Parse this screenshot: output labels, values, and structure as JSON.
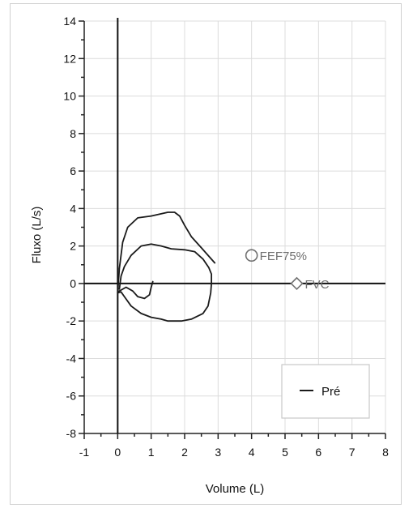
{
  "chart_data": {
    "type": "line",
    "title": "",
    "xlabel": "Volume (L)",
    "ylabel": "Fluxo (L/s)",
    "xlim": [
      -1,
      8
    ],
    "ylim": [
      -8,
      14
    ],
    "x_ticks": [
      "-1",
      "0",
      "1",
      "2",
      "3",
      "4",
      "5",
      "6",
      "7",
      "8"
    ],
    "y_ticks": [
      "-8",
      "-6",
      "-4",
      "-2",
      "0",
      "2",
      "4",
      "6",
      "8",
      "10",
      "12",
      "14"
    ],
    "grid": true,
    "legend_position": "bottom-right",
    "series": [
      {
        "name": "Pré",
        "color": "#1a1a1a",
        "loops": [
          {
            "points": [
              [
                0.0,
                -0.5
              ],
              [
                0.05,
                0.8
              ],
              [
                0.15,
                2.2
              ],
              [
                0.3,
                3.0
              ],
              [
                0.6,
                3.5
              ],
              [
                1.0,
                3.6
              ],
              [
                1.5,
                3.8
              ],
              [
                1.7,
                3.8
              ],
              [
                1.85,
                3.6
              ],
              [
                2.0,
                3.1
              ],
              [
                2.2,
                2.5
              ],
              [
                2.5,
                1.9
              ],
              [
                2.75,
                1.4
              ],
              [
                2.9,
                1.1
              ]
            ]
          },
          {
            "points": [
              [
                0.05,
                -0.3
              ],
              [
                0.1,
                0.4
              ],
              [
                0.2,
                0.9
              ],
              [
                0.4,
                1.5
              ],
              [
                0.7,
                2.0
              ],
              [
                1.0,
                2.1
              ],
              [
                1.3,
                2.0
              ],
              [
                1.6,
                1.85
              ],
              [
                2.0,
                1.8
              ],
              [
                2.3,
                1.7
              ],
              [
                2.55,
                1.3
              ],
              [
                2.72,
                0.85
              ],
              [
                2.8,
                0.5
              ],
              [
                2.8,
                0.0
              ],
              [
                2.78,
                -0.5
              ],
              [
                2.7,
                -1.2
              ],
              [
                2.55,
                -1.6
              ],
              [
                2.2,
                -1.9
              ],
              [
                1.9,
                -2.0
              ],
              [
                1.5,
                -2.0
              ],
              [
                1.3,
                -1.9
              ],
              [
                1.0,
                -1.8
              ],
              [
                0.7,
                -1.6
              ],
              [
                0.4,
                -1.2
              ],
              [
                0.2,
                -0.7
              ],
              [
                0.1,
                -0.45
              ],
              [
                0.0,
                -0.5
              ]
            ]
          },
          {
            "points": [
              [
                0.0,
                -0.45
              ],
              [
                0.1,
                -0.35
              ],
              [
                0.25,
                -0.2
              ],
              [
                0.45,
                -0.4
              ],
              [
                0.6,
                -0.7
              ],
              [
                0.8,
                -0.8
              ],
              [
                0.95,
                -0.6
              ],
              [
                1.0,
                -0.2
              ],
              [
                1.05,
                0.1
              ]
            ]
          }
        ]
      }
    ],
    "markers": [
      {
        "label": "FEF75%",
        "shape": "circle",
        "color": "#707070",
        "x": 4.0,
        "y": 1.5
      },
      {
        "label": "FVC",
        "shape": "diamond",
        "color": "#707070",
        "x": 5.35,
        "y": 0.0
      }
    ]
  }
}
